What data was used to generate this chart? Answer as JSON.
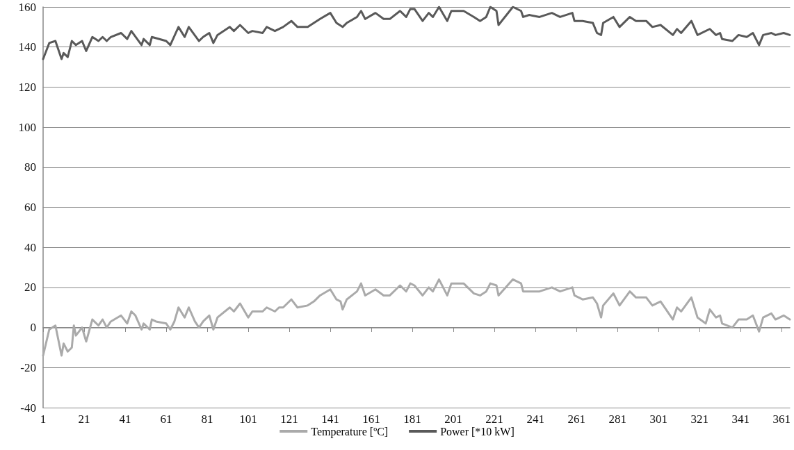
{
  "chart_data": {
    "type": "line",
    "xlim": [
      1,
      365
    ],
    "xticks": [
      1,
      21,
      41,
      61,
      81,
      101,
      121,
      141,
      161,
      181,
      201,
      221,
      241,
      261,
      281,
      301,
      321,
      341,
      361
    ],
    "ylim": [
      -40,
      160
    ],
    "yticks": [
      -40,
      -20,
      0,
      20,
      40,
      60,
      80,
      100,
      120,
      140,
      160
    ],
    "grid": "y",
    "legend": "bottom",
    "marker": "none",
    "line_style": "solid",
    "series": [
      {
        "name": "Temperature [ºC]",
        "color": "#aaaaaa",
        "x": [
          1,
          4,
          7,
          10,
          11,
          13,
          15,
          16,
          17,
          20,
          22,
          25,
          28,
          30,
          32,
          34,
          39,
          42,
          44,
          46,
          49,
          50,
          53,
          54,
          56,
          61,
          63,
          65,
          67,
          70,
          72,
          75,
          77,
          79,
          82,
          84,
          86,
          92,
          94,
          97,
          101,
          103,
          108,
          110,
          114,
          116,
          118,
          122,
          125,
          130,
          133,
          136,
          141,
          144,
          146,
          147,
          149,
          154,
          156,
          158,
          163,
          167,
          170,
          175,
          178,
          180,
          182,
          186,
          189,
          191,
          194,
          198,
          200,
          206,
          211,
          214,
          217,
          219,
          222,
          223,
          230,
          234,
          235,
          238,
          243,
          249,
          253,
          259,
          260,
          264,
          269,
          271,
          273,
          274,
          279,
          282,
          287,
          290,
          295,
          298,
          302,
          308,
          310,
          312,
          317,
          320,
          324,
          326,
          329,
          331,
          332,
          337,
          340,
          344,
          347,
          350,
          352,
          356,
          358,
          362,
          365
        ],
        "values": [
          -14,
          -1,
          1,
          -14,
          -8,
          -12,
          -10,
          1,
          -4,
          0,
          -7,
          4,
          1,
          4,
          0,
          3,
          6,
          2,
          8,
          6,
          -1,
          2,
          -1,
          4,
          3,
          2,
          -1,
          3,
          10,
          5,
          10,
          3,
          0,
          3,
          6,
          -1,
          5,
          10,
          8,
          12,
          5,
          8,
          8,
          10,
          8,
          10,
          10,
          14,
          10,
          11,
          13,
          16,
          19,
          14,
          13,
          9,
          14,
          18,
          22,
          16,
          19,
          16,
          16,
          21,
          18,
          22,
          21,
          16,
          20,
          18,
          24,
          16,
          22,
          22,
          17,
          16,
          18,
          22,
          21,
          16,
          24,
          22,
          18,
          18,
          18,
          20,
          18,
          20,
          16,
          14,
          15,
          12,
          5,
          11,
          17,
          11,
          18,
          15,
          15,
          11,
          13,
          4,
          10,
          8,
          15,
          5,
          2,
          9,
          5,
          6,
          2,
          0,
          4,
          4,
          6,
          -2,
          5,
          7,
          4,
          6,
          4
        ]
      },
      {
        "name": "Power [*10 kW]",
        "color": "#595959",
        "x": [
          1,
          4,
          7,
          10,
          11,
          13,
          15,
          17,
          20,
          22,
          25,
          28,
          30,
          32,
          34,
          39,
          42,
          44,
          49,
          50,
          53,
          54,
          61,
          63,
          67,
          70,
          72,
          77,
          79,
          82,
          84,
          86,
          92,
          94,
          97,
          101,
          103,
          108,
          110,
          114,
          118,
          122,
          125,
          130,
          133,
          136,
          141,
          144,
          147,
          149,
          154,
          156,
          158,
          163,
          167,
          170,
          175,
          178,
          180,
          182,
          186,
          189,
          191,
          194,
          198,
          200,
          206,
          211,
          214,
          217,
          219,
          222,
          223,
          230,
          234,
          235,
          238,
          243,
          249,
          253,
          259,
          260,
          264,
          269,
          271,
          273,
          274,
          279,
          282,
          287,
          290,
          295,
          298,
          302,
          308,
          310,
          312,
          317,
          320,
          326,
          329,
          331,
          332,
          337,
          340,
          344,
          347,
          350,
          352,
          356,
          358,
          362,
          365
        ],
        "values": [
          134,
          142,
          143,
          134,
          137,
          135,
          143,
          141,
          143,
          138,
          145,
          143,
          145,
          143,
          145,
          147,
          144,
          148,
          141,
          144,
          141,
          145,
          143,
          141,
          150,
          145,
          150,
          143,
          145,
          147,
          142,
          146,
          150,
          148,
          151,
          147,
          148,
          147,
          150,
          148,
          150,
          153,
          150,
          150,
          152,
          154,
          157,
          152,
          150,
          152,
          155,
          158,
          154,
          157,
          154,
          154,
          158,
          155,
          159,
          159,
          153,
          157,
          155,
          160,
          153,
          158,
          158,
          155,
          153,
          155,
          160,
          158,
          151,
          160,
          158,
          155,
          156,
          155,
          157,
          155,
          157,
          153,
          153,
          152,
          147,
          146,
          152,
          155,
          150,
          155,
          153,
          153,
          150,
          151,
          146,
          149,
          147,
          153,
          146,
          149,
          146,
          147,
          144,
          143,
          146,
          145,
          147,
          141,
          146,
          147,
          146,
          147,
          146
        ]
      }
    ]
  }
}
